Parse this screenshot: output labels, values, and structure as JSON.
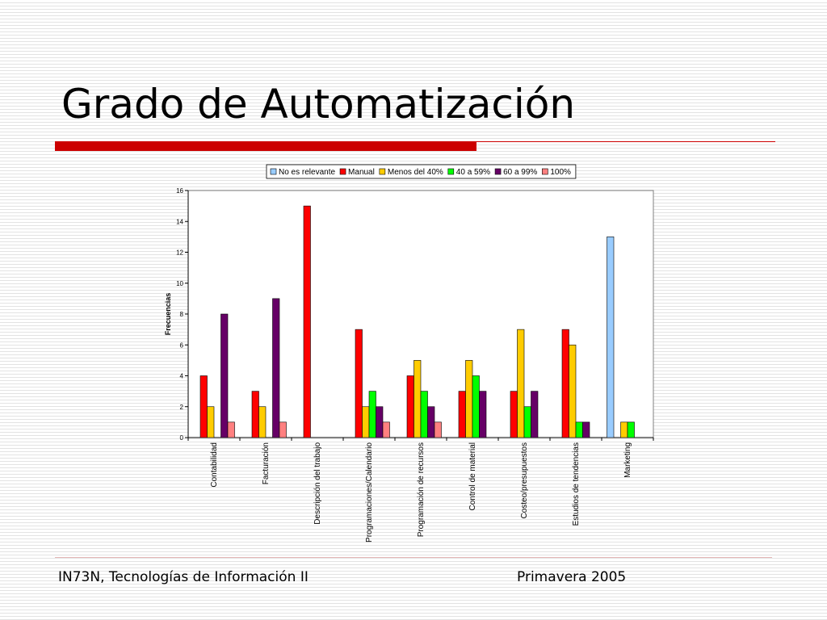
{
  "slide": {
    "title": "Grado de Automatización",
    "footer_left": "IN73N, Tecnologías de Información II",
    "footer_right": "Primavera 2005",
    "accent_color": "#cc0000"
  },
  "chart_data": {
    "type": "bar",
    "ylabel": "Frecuencias",
    "ylim": [
      0,
      16
    ],
    "yticks": [
      0,
      2,
      4,
      6,
      8,
      10,
      12,
      14,
      16
    ],
    "grid": false,
    "legend_position": "top",
    "categories": [
      "Contabilidad",
      "Facturación",
      "Descripción del trabajo",
      "Programaciones/Calendario",
      "Programación de recursos",
      "Control de material",
      "Costeo/presupuestos",
      "Estudios de tendencias",
      "Marketing"
    ],
    "series": [
      {
        "name": "No es relevante",
        "color": "#99ccff",
        "values": [
          0,
          0,
          0,
          0,
          0,
          0,
          0,
          0,
          13
        ]
      },
      {
        "name": "Manual",
        "color": "#ff0000",
        "values": [
          4,
          3,
          15,
          7,
          4,
          3,
          3,
          7,
          0
        ]
      },
      {
        "name": "Menos del 40%",
        "color": "#ffcc00",
        "values": [
          2,
          2,
          0,
          2,
          5,
          5,
          7,
          6,
          1
        ]
      },
      {
        "name": "40 a 59%",
        "color": "#00ff00",
        "values": [
          0,
          0,
          0,
          3,
          3,
          4,
          2,
          1,
          1
        ]
      },
      {
        "name": "60 a 99%",
        "color": "#660066",
        "values": [
          8,
          9,
          0,
          2,
          2,
          3,
          3,
          1,
          0
        ]
      },
      {
        "name": "100%",
        "color": "#ff8080",
        "values": [
          1,
          1,
          0,
          1,
          1,
          0,
          0,
          0,
          0
        ]
      }
    ]
  }
}
